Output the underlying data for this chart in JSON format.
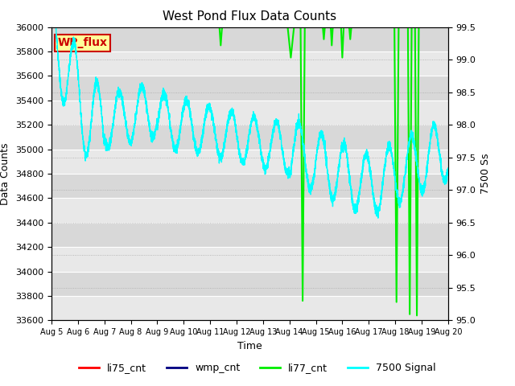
{
  "title": "West Pond Flux Data Counts",
  "xlabel": "Time",
  "ylabel_left": "Data Counts",
  "ylabel_right": "7500 Ss",
  "ylim_left": [
    33600,
    36000
  ],
  "ylim_right": [
    95.0,
    99.5
  ],
  "xlim": [
    0,
    15
  ],
  "annotation_label": "WP_flux",
  "annotation_color": "#cc0000",
  "annotation_bg": "#ffff99",
  "annotation_border": "#cc0000",
  "bg_color": "#d8d8d8",
  "band_color": "#e8e8e8"
}
